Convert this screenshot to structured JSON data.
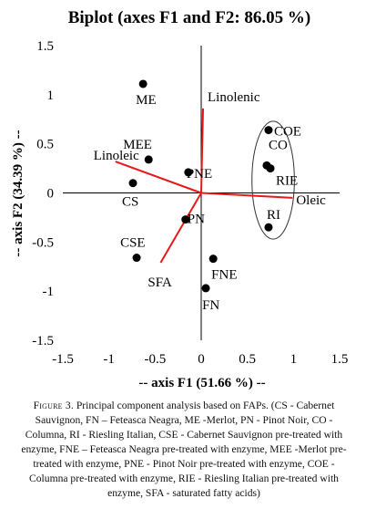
{
  "chart_data": {
    "type": "scatter",
    "title": "Biplot (axes F1 and F2: 86.05 %)",
    "xlabel": "-- axis F1 (51.66 %) --",
    "ylabel": "-- axis F2 (34.39 %) --",
    "xlim": [
      -1.5,
      1.5
    ],
    "ylim": [
      -1.5,
      1.5
    ],
    "x_ticks": [
      "-1.5",
      "-1",
      "-0.5",
      "0",
      "0.5",
      "1",
      "1.5"
    ],
    "y_ticks": [
      "-1.5",
      "-1",
      "-0.5",
      "0",
      "0.5",
      "1",
      "1.5"
    ],
    "grid": false,
    "points": [
      {
        "label": "ME",
        "x": -0.63,
        "y": 1.11
      },
      {
        "label": "MEE",
        "x": -0.57,
        "y": 0.34
      },
      {
        "label": "CS",
        "x": -0.74,
        "y": 0.1
      },
      {
        "label": "PNE",
        "x": -0.14,
        "y": 0.21
      },
      {
        "label": "PN",
        "x": -0.17,
        "y": -0.27
      },
      {
        "label": "CSE",
        "x": -0.7,
        "y": -0.66
      },
      {
        "label": "FNE",
        "x": 0.13,
        "y": -0.67
      },
      {
        "label": "FN",
        "x": 0.05,
        "y": -0.97
      },
      {
        "label": "COE",
        "x": 0.73,
        "y": 0.64
      },
      {
        "label": "CO",
        "x": 0.71,
        "y": 0.28
      },
      {
        "label": "RIE",
        "x": 0.75,
        "y": 0.25
      },
      {
        "label": "RI",
        "x": 0.73,
        "y": -0.35
      }
    ],
    "vectors": [
      {
        "label": "Linolenic",
        "x": 0.02,
        "y": 0.86
      },
      {
        "label": "Linoleic",
        "x": -0.93,
        "y": 0.32
      },
      {
        "label": "Oleic",
        "x": 0.99,
        "y": -0.05
      },
      {
        "label": "SFA",
        "x": -0.44,
        "y": -0.71
      }
    ],
    "vector_color": "#e8191a",
    "ellipse": {
      "cx": 0.78,
      "cy": 0.13,
      "rx": 0.23,
      "ry": 0.6
    }
  },
  "caption": {
    "figure_label": "Figure 3.",
    "text": " Principal component analysis based on FAPs. (CS - Cabernet Sauvignon, FN – Feteasca Neagra, ME -Merlot, PN - Pinot Noir, CO - Columna, RI - Riesling Italian, CSE - Cabernet Sauvignon pre-treated with enzyme, FNE – Feteasca Neagra pre-treated with enzyme, MEE -Merlot pre-treated with enzyme, PNE - Pinot Noir pre-treated with enzyme, COE - Columna pre-treated with enzyme, RIE - Riesling Italian pre-treated with enzyme, SFA - saturated fatty acids)"
  }
}
